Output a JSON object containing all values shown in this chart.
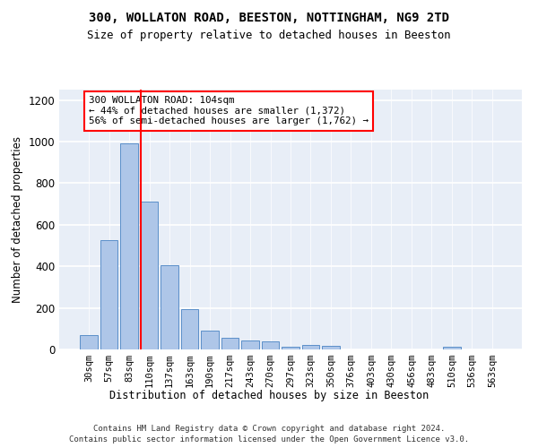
{
  "title1": "300, WOLLATON ROAD, BEESTON, NOTTINGHAM, NG9 2TD",
  "title2": "Size of property relative to detached houses in Beeston",
  "xlabel": "Distribution of detached houses by size in Beeston",
  "ylabel": "Number of detached properties",
  "categories": [
    "30sqm",
    "57sqm",
    "83sqm",
    "110sqm",
    "137sqm",
    "163sqm",
    "190sqm",
    "217sqm",
    "243sqm",
    "270sqm",
    "297sqm",
    "323sqm",
    "350sqm",
    "376sqm",
    "403sqm",
    "430sqm",
    "456sqm",
    "483sqm",
    "510sqm",
    "536sqm",
    "563sqm"
  ],
  "values": [
    68,
    525,
    990,
    710,
    405,
    195,
    90,
    58,
    45,
    38,
    15,
    20,
    18,
    0,
    0,
    0,
    0,
    0,
    12,
    0,
    0
  ],
  "bar_color": "#aec6e8",
  "bar_edge_color": "#5b8fc9",
  "red_line_index": 3,
  "annotation_text": "300 WOLLATON ROAD: 104sqm\n← 44% of detached houses are smaller (1,372)\n56% of semi-detached houses are larger (1,762) →",
  "annotation_box_color": "white",
  "annotation_box_edge": "red",
  "footer1": "Contains HM Land Registry data © Crown copyright and database right 2024.",
  "footer2": "Contains public sector information licensed under the Open Government Licence v3.0.",
  "ylim": [
    0,
    1250
  ],
  "yticks": [
    0,
    200,
    400,
    600,
    800,
    1000,
    1200
  ],
  "background_color": "#e8eef7"
}
